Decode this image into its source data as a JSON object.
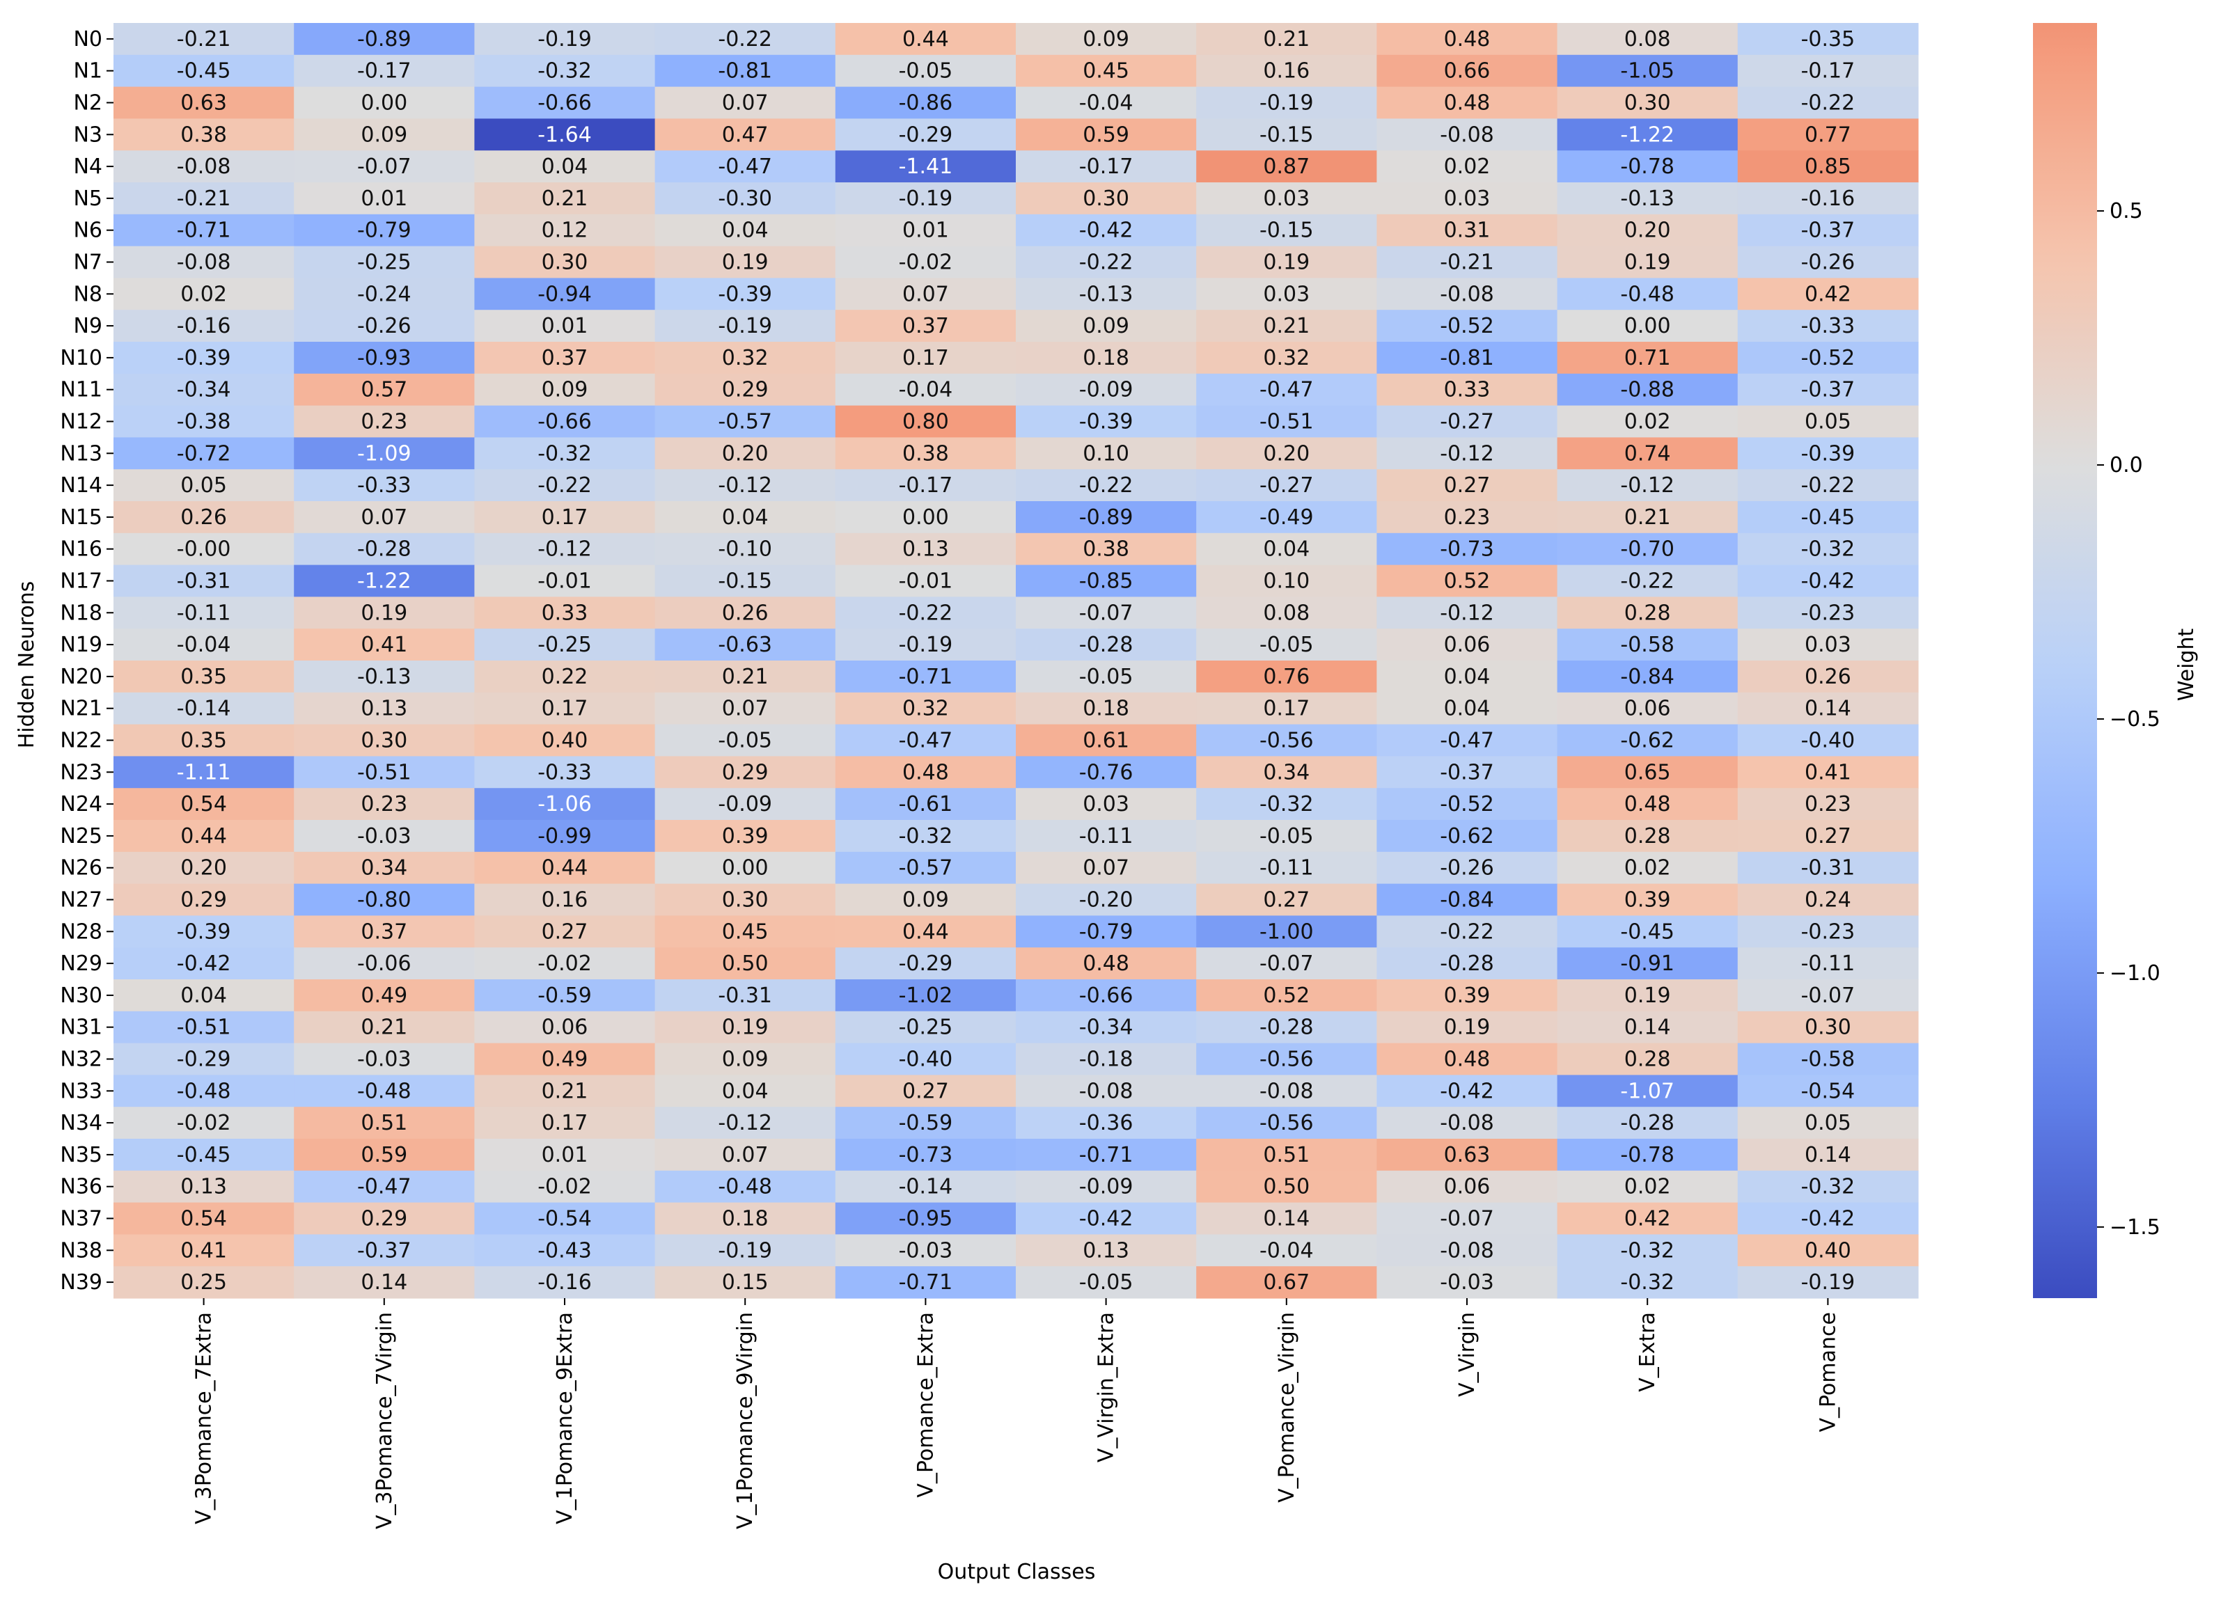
{
  "chart_data": {
    "type": "heatmap",
    "xlabel": "Output Classes",
    "ylabel": "Hidden Neurons",
    "colorbar_label": "Weight",
    "colormap": "coolwarm",
    "color_range": [
      -1.64,
      0.87
    ],
    "colorbar_ticks": [
      -1.5,
      -1.0,
      -0.5,
      0.0,
      0.5
    ],
    "colorbar_tick_labels": [
      "−1.5",
      "−1.0",
      "−0.5",
      "0.0",
      "0.5"
    ],
    "colors": {
      "low": "#3b4cc0",
      "mid": "#dddddd",
      "high": "#f7a889",
      "max": "#ef8a6c"
    },
    "x_categories": [
      "V_3Pomance_7Extra",
      "V_3Pomance_7Virgin",
      "V_1Pomance_9Extra",
      "V_1Pomance_9Virgin",
      "V_Pomance_Extra",
      "V_Virgin_Extra",
      "V_Pomance_Virgin",
      "V_Virgin",
      "V_Extra",
      "V_Pomance"
    ],
    "y_categories": [
      "N0",
      "N1",
      "N2",
      "N3",
      "N4",
      "N5",
      "N6",
      "N7",
      "N8",
      "N9",
      "N10",
      "N11",
      "N12",
      "N13",
      "N14",
      "N15",
      "N16",
      "N17",
      "N18",
      "N19",
      "N20",
      "N21",
      "N22",
      "N23",
      "N24",
      "N25",
      "N26",
      "N27",
      "N28",
      "N29",
      "N30",
      "N31",
      "N32",
      "N33",
      "N34",
      "N35",
      "N36",
      "N37",
      "N38",
      "N39"
    ],
    "values": [
      [
        -0.21,
        -0.89,
        -0.19,
        -0.22,
        0.44,
        0.09,
        0.21,
        0.48,
        0.08,
        -0.35
      ],
      [
        -0.45,
        -0.17,
        -0.32,
        -0.81,
        -0.05,
        0.45,
        0.16,
        0.66,
        -1.05,
        -0.17
      ],
      [
        0.63,
        0.0,
        -0.66,
        0.07,
        -0.86,
        -0.04,
        -0.19,
        0.48,
        0.3,
        -0.22
      ],
      [
        0.38,
        0.09,
        -1.64,
        0.47,
        -0.29,
        0.59,
        -0.15,
        -0.08,
        -1.22,
        0.77
      ],
      [
        -0.08,
        -0.07,
        0.04,
        -0.47,
        -1.41,
        -0.17,
        0.87,
        0.02,
        -0.78,
        0.85
      ],
      [
        -0.21,
        0.01,
        0.21,
        -0.3,
        -0.19,
        0.3,
        0.03,
        0.03,
        -0.13,
        -0.16
      ],
      [
        -0.71,
        -0.79,
        0.12,
        0.04,
        0.01,
        -0.42,
        -0.15,
        0.31,
        0.2,
        -0.37
      ],
      [
        -0.08,
        -0.25,
        0.3,
        0.19,
        -0.02,
        -0.22,
        0.19,
        -0.21,
        0.19,
        -0.26
      ],
      [
        0.02,
        -0.24,
        -0.94,
        -0.39,
        0.07,
        -0.13,
        0.03,
        -0.08,
        -0.48,
        0.42
      ],
      [
        -0.16,
        -0.26,
        0.01,
        -0.19,
        0.37,
        0.09,
        0.21,
        -0.52,
        0.0,
        -0.33
      ],
      [
        -0.39,
        -0.93,
        0.37,
        0.32,
        0.17,
        0.18,
        0.32,
        -0.81,
        0.71,
        -0.52
      ],
      [
        -0.34,
        0.57,
        0.09,
        0.29,
        -0.04,
        -0.09,
        -0.47,
        0.33,
        -0.88,
        -0.37
      ],
      [
        -0.38,
        0.23,
        -0.66,
        -0.57,
        0.8,
        -0.39,
        -0.51,
        -0.27,
        0.02,
        0.05
      ],
      [
        -0.72,
        -1.09,
        -0.32,
        0.2,
        0.38,
        0.1,
        0.2,
        -0.12,
        0.74,
        -0.39
      ],
      [
        0.05,
        -0.33,
        -0.22,
        -0.12,
        -0.17,
        -0.22,
        -0.27,
        0.27,
        -0.12,
        -0.22
      ],
      [
        0.26,
        0.07,
        0.17,
        0.04,
        0.0,
        -0.89,
        -0.49,
        0.23,
        0.21,
        -0.45
      ],
      [
        -0.0,
        -0.28,
        -0.12,
        -0.1,
        0.13,
        0.38,
        0.04,
        -0.73,
        -0.7,
        -0.32
      ],
      [
        -0.31,
        -1.22,
        -0.01,
        -0.15,
        -0.01,
        -0.85,
        0.1,
        0.52,
        -0.22,
        -0.42
      ],
      [
        -0.11,
        0.19,
        0.33,
        0.26,
        -0.22,
        -0.07,
        0.08,
        -0.12,
        0.28,
        -0.23
      ],
      [
        -0.04,
        0.41,
        -0.25,
        -0.63,
        -0.19,
        -0.28,
        -0.05,
        0.06,
        -0.58,
        0.03
      ],
      [
        0.35,
        -0.13,
        0.22,
        0.21,
        -0.71,
        -0.05,
        0.76,
        0.04,
        -0.84,
        0.26
      ],
      [
        -0.14,
        0.13,
        0.17,
        0.07,
        0.32,
        0.18,
        0.17,
        0.04,
        0.06,
        0.14
      ],
      [
        0.35,
        0.3,
        0.4,
        -0.05,
        -0.47,
        0.61,
        -0.56,
        -0.47,
        -0.62,
        -0.4
      ],
      [
        -1.11,
        -0.51,
        -0.33,
        0.29,
        0.48,
        -0.76,
        0.34,
        -0.37,
        0.65,
        0.41
      ],
      [
        0.54,
        0.23,
        -1.06,
        -0.09,
        -0.61,
        0.03,
        -0.32,
        -0.52,
        0.48,
        0.23
      ],
      [
        0.44,
        -0.03,
        -0.99,
        0.39,
        -0.32,
        -0.11,
        -0.05,
        -0.62,
        0.28,
        0.27
      ],
      [
        0.2,
        0.34,
        0.44,
        0.0,
        -0.57,
        0.07,
        -0.11,
        -0.26,
        0.02,
        -0.31
      ],
      [
        0.29,
        -0.8,
        0.16,
        0.3,
        0.09,
        -0.2,
        0.27,
        -0.84,
        0.39,
        0.24
      ],
      [
        -0.39,
        0.37,
        0.27,
        0.45,
        0.44,
        -0.79,
        -1.0,
        -0.22,
        -0.45,
        -0.23
      ],
      [
        -0.42,
        -0.06,
        -0.02,
        0.5,
        -0.29,
        0.48,
        -0.07,
        -0.28,
        -0.91,
        -0.11
      ],
      [
        0.04,
        0.49,
        -0.59,
        -0.31,
        -1.02,
        -0.66,
        0.52,
        0.39,
        0.19,
        -0.07
      ],
      [
        -0.51,
        0.21,
        0.06,
        0.19,
        -0.25,
        -0.34,
        -0.28,
        0.19,
        0.14,
        0.3
      ],
      [
        -0.29,
        -0.03,
        0.49,
        0.09,
        -0.4,
        -0.18,
        -0.56,
        0.48,
        0.28,
        -0.58
      ],
      [
        -0.48,
        -0.48,
        0.21,
        0.04,
        0.27,
        -0.08,
        -0.08,
        -0.42,
        -1.07,
        -0.54
      ],
      [
        -0.02,
        0.51,
        0.17,
        -0.12,
        -0.59,
        -0.36,
        -0.56,
        -0.08,
        -0.28,
        0.05
      ],
      [
        -0.45,
        0.59,
        0.01,
        0.07,
        -0.73,
        -0.71,
        0.51,
        0.63,
        -0.78,
        0.14
      ],
      [
        0.13,
        -0.47,
        -0.02,
        -0.48,
        -0.14,
        -0.09,
        0.5,
        0.06,
        0.02,
        -0.32
      ],
      [
        0.54,
        0.29,
        -0.54,
        0.18,
        -0.95,
        -0.42,
        0.14,
        -0.07,
        0.42,
        -0.42
      ],
      [
        0.41,
        -0.37,
        -0.43,
        -0.19,
        -0.03,
        0.13,
        -0.04,
        -0.08,
        -0.32,
        0.4
      ],
      [
        0.25,
        0.14,
        -0.16,
        0.15,
        -0.71,
        -0.05,
        0.67,
        -0.03,
        -0.32,
        -0.19
      ]
    ]
  }
}
